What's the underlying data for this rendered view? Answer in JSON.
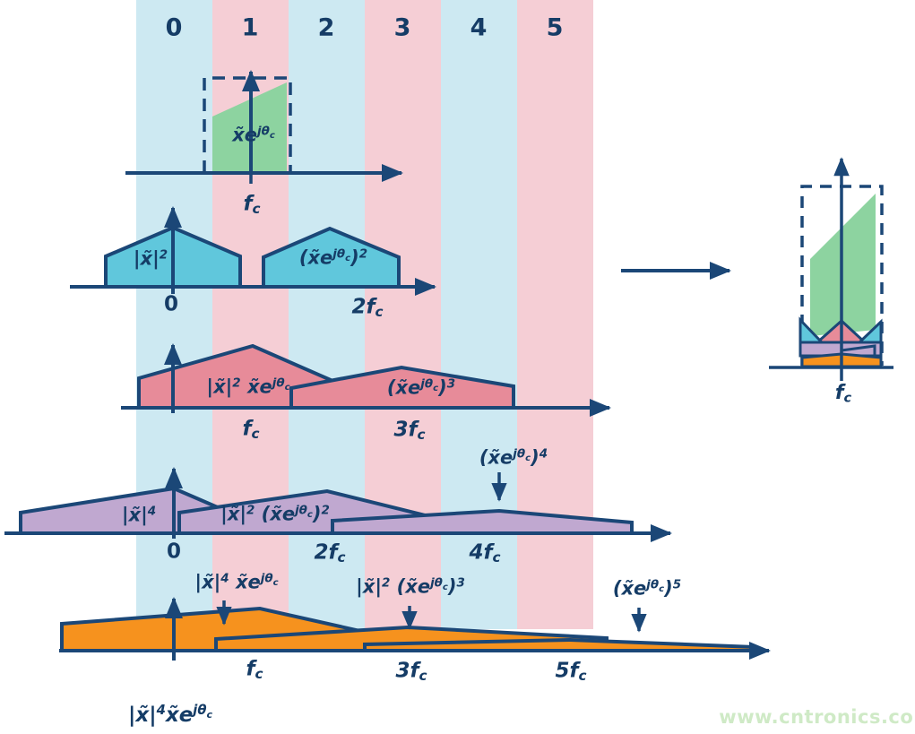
{
  "colors": {
    "navy": "#1b4777",
    "navy_text": "#153c66",
    "band_blue": "#cde9f2",
    "band_pink": "#f5ced5",
    "green": "#8dd3a0",
    "blue": "#60c7dc",
    "red": "#e78b99",
    "purple": "#c0a8d0",
    "orange": "#f6921e",
    "watermark": "#cfeac6",
    "background": "#ffffff"
  },
  "bands": {
    "labels": [
      "0",
      "1",
      "2",
      "3",
      "4",
      "5"
    ]
  },
  "watermark": "www.cntronics.com",
  "formulas": {
    "p1_main": [
      [
        "x̃e",
        "n"
      ],
      [
        "jθ",
        "p"
      ],
      [
        "c",
        "q"
      ]
    ],
    "p1_tick": [
      [
        "f",
        "n"
      ],
      [
        "c",
        "s"
      ]
    ],
    "p2_left": [
      [
        "|x̃|",
        "n"
      ],
      [
        "2",
        "p"
      ]
    ],
    "p2_right": [
      [
        "(x̃e",
        "n"
      ],
      [
        "jθ",
        "p"
      ],
      [
        "c",
        "q"
      ],
      [
        ")",
        "n"
      ],
      [
        "2",
        "p"
      ]
    ],
    "p2_t0": [
      [
        "0",
        "u"
      ]
    ],
    "p2_t2": [
      [
        "2f",
        "n"
      ],
      [
        "c",
        "s"
      ]
    ],
    "p3_left": [
      [
        "|x̃|",
        "n"
      ],
      [
        "2",
        "p"
      ],
      [
        " x̃e",
        "n"
      ],
      [
        "jθ",
        "p"
      ],
      [
        "c",
        "q"
      ]
    ],
    "p3_right": [
      [
        "(x̃e",
        "n"
      ],
      [
        "jθ",
        "p"
      ],
      [
        "c",
        "q"
      ],
      [
        ")",
        "n"
      ],
      [
        "3",
        "p"
      ]
    ],
    "p3_t1": [
      [
        "f",
        "n"
      ],
      [
        "c",
        "s"
      ]
    ],
    "p3_t3": [
      [
        "3f",
        "n"
      ],
      [
        "c",
        "s"
      ]
    ],
    "p4_left": [
      [
        "|x̃|",
        "n"
      ],
      [
        "4",
        "p"
      ]
    ],
    "p4_mid": [
      [
        "|x̃|",
        "n"
      ],
      [
        "2",
        "p"
      ],
      [
        " (x̃e",
        "n"
      ],
      [
        "jθ",
        "p"
      ],
      [
        "c",
        "q"
      ],
      [
        ")",
        "n"
      ],
      [
        "2",
        "p"
      ]
    ],
    "p4_high": [
      [
        "(x̃e",
        "n"
      ],
      [
        "jθ",
        "p"
      ],
      [
        "c",
        "q"
      ],
      [
        ")",
        "n"
      ],
      [
        "4",
        "p"
      ]
    ],
    "p4_t0": [
      [
        "0",
        "u"
      ]
    ],
    "p4_t2": [
      [
        "2f",
        "n"
      ],
      [
        "c",
        "s"
      ]
    ],
    "p4_t4": [
      [
        "4f",
        "n"
      ],
      [
        "c",
        "s"
      ]
    ],
    "p5_l1": [
      [
        "|x̃|",
        "n"
      ],
      [
        "4",
        "p"
      ],
      [
        " x̃e",
        "n"
      ],
      [
        "jθ",
        "p"
      ],
      [
        "c",
        "q"
      ]
    ],
    "p5_l2": [
      [
        "|x̃|",
        "n"
      ],
      [
        "2",
        "p"
      ],
      [
        " (x̃e",
        "n"
      ],
      [
        "jθ",
        "p"
      ],
      [
        "c",
        "q"
      ],
      [
        ")",
        "n"
      ],
      [
        "3",
        "p"
      ]
    ],
    "p5_l3": [
      [
        "(x̃e",
        "n"
      ],
      [
        "jθ",
        "p"
      ],
      [
        "c",
        "q"
      ],
      [
        ")",
        "n"
      ],
      [
        "5",
        "p"
      ]
    ],
    "p5_t1": [
      [
        "f",
        "n"
      ],
      [
        "c",
        "s"
      ]
    ],
    "p5_t3": [
      [
        "3f",
        "n"
      ],
      [
        "c",
        "s"
      ]
    ],
    "p5_t5": [
      [
        "5f",
        "n"
      ],
      [
        "c",
        "s"
      ]
    ],
    "combined_tick": [
      [
        "f",
        "n"
      ],
      [
        "c",
        "s"
      ]
    ],
    "bottom_label": [
      [
        "|x̃|",
        "n"
      ],
      [
        "4",
        "p"
      ],
      [
        "x̃e",
        "n"
      ],
      [
        "jθ",
        "p"
      ],
      [
        "c",
        "q"
      ]
    ]
  }
}
